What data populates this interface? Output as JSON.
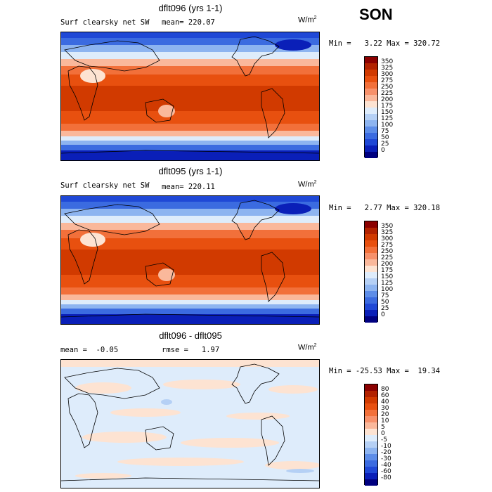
{
  "season": "SON",
  "panels": [
    {
      "title": "dflt096 (yrs 1-1)",
      "left_label": "Surf clearsky net SW",
      "center_label": "mean= 220.07",
      "units": "W/m",
      "units_sup": "2",
      "minmax": "Min =   3.22 Max = 320.72",
      "levels": [
        "350",
        "325",
        "300",
        "275",
        "250",
        "225",
        "200",
        "175",
        "150",
        "125",
        "100",
        "75",
        "50",
        "25",
        "0"
      ],
      "colors": [
        "#8b0000",
        "#b22200",
        "#d13a00",
        "#e8500f",
        "#f2703a",
        "#f7916b",
        "#fab89b",
        "#fde3d2",
        "#deecfb",
        "#b5d0f5",
        "#8db4f0",
        "#5d8de8",
        "#3b6be0",
        "#1f48d6",
        "#0a1fb8",
        "#000080"
      ]
    },
    {
      "title": "dflt095 (yrs 1-1)",
      "left_label": "Surf clearsky net SW",
      "center_label": "mean= 220.11",
      "units": "W/m",
      "units_sup": "2",
      "minmax": "Min =   2.77 Max = 320.18",
      "levels": [
        "350",
        "325",
        "300",
        "275",
        "250",
        "225",
        "200",
        "175",
        "150",
        "125",
        "100",
        "75",
        "50",
        "25",
        "0"
      ],
      "colors": [
        "#8b0000",
        "#b22200",
        "#d13a00",
        "#e8500f",
        "#f2703a",
        "#f7916b",
        "#fab89b",
        "#fde3d2",
        "#deecfb",
        "#b5d0f5",
        "#8db4f0",
        "#5d8de8",
        "#3b6be0",
        "#1f48d6",
        "#0a1fb8",
        "#000080"
      ]
    },
    {
      "title": "dflt096 - dflt095",
      "left_label": "mean =  -0.05",
      "center_label": "rmse =   1.97",
      "units": "W/m",
      "units_sup": "2",
      "minmax": "Min = -25.53 Max =  19.34",
      "levels": [
        "80",
        "60",
        "40",
        "30",
        "20",
        "10",
        "5",
        "0",
        "-5",
        "-10",
        "-20",
        "-30",
        "-40",
        "-60",
        "-80"
      ],
      "colors": [
        "#8b0000",
        "#b22200",
        "#d13a00",
        "#e8500f",
        "#f2703a",
        "#f7916b",
        "#fab89b",
        "#fde3d2",
        "#deecfb",
        "#b5d0f5",
        "#8db4f0",
        "#5d8de8",
        "#3b6be0",
        "#1f48d6",
        "#0a1fb8",
        "#000080"
      ]
    }
  ]
}
